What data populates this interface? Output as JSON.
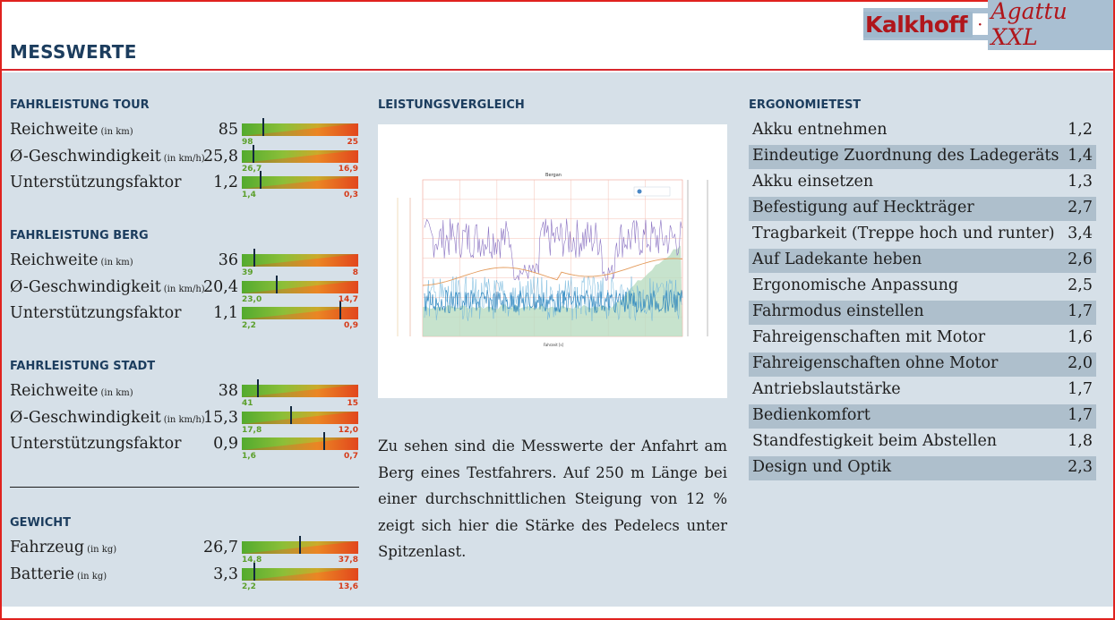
{
  "header": {
    "title": "MESSWERTE",
    "brand_make": "Kalkhoff",
    "brand_sep": "·",
    "brand_model": "Agattu XXL"
  },
  "left": {
    "sections": [
      {
        "title": "FAHRLEISTUNG TOUR",
        "metrics": [
          {
            "label": "Reichweite",
            "unit": "(in km)",
            "value": "85",
            "min": "98",
            "max": "25",
            "fraction": 0.18
          },
          {
            "label": "Ø-Geschwindigkeit",
            "unit": "(in km/h)",
            "value": "25,8",
            "min": "26,7",
            "max": "16,9",
            "fraction": 0.09
          },
          {
            "label": "Unterstützungsfaktor",
            "unit": "",
            "value": "1,2",
            "min": "1,4",
            "max": "0,3",
            "fraction": 0.16
          }
        ]
      },
      {
        "title": "FAHRLEISTUNG BERG",
        "metrics": [
          {
            "label": "Reichweite",
            "unit": "(in km)",
            "value": "36",
            "min": "39",
            "max": "8",
            "fraction": 0.1
          },
          {
            "label": "Ø-Geschwindigkeit",
            "unit": "(in km/h)",
            "value": "20,4",
            "min": "23,0",
            "max": "14,7",
            "fraction": 0.3
          },
          {
            "label": "Unterstützungsfaktor",
            "unit": "",
            "value": "1,1",
            "min": "2,2",
            "max": "0,9",
            "fraction": 0.85
          }
        ]
      },
      {
        "title": "FAHRLEISTUNG STADT",
        "metrics": [
          {
            "label": "Reichweite",
            "unit": "(in km)",
            "value": "38",
            "min": "41",
            "max": "15",
            "fraction": 0.13
          },
          {
            "label": "Ø-Geschwindigkeit",
            "unit": "(in km/h)",
            "value": "15,3",
            "min": "17,8",
            "max": "12,0",
            "fraction": 0.42
          },
          {
            "label": "Unterstützungsfaktor",
            "unit": "",
            "value": "0,9",
            "min": "1,6",
            "max": "0,7",
            "fraction": 0.71
          }
        ]
      },
      {
        "title": "GEWICHT",
        "metrics": [
          {
            "label": "Fahrzeug",
            "unit": "(in kg)",
            "value": "26,7",
            "min": "14,8",
            "max": "37,8",
            "fraction": 0.5
          },
          {
            "label": "Batterie",
            "unit": "(in kg)",
            "value": "3,3",
            "min": "2,2",
            "max": "13,6",
            "fraction": 0.1
          }
        ]
      }
    ]
  },
  "middle": {
    "title": "LEISTUNGSVERGLEICH",
    "chart_title": "Bergan",
    "x_label": "Fahrzeit [s]",
    "caption": "Zu sehen sind die Messwerte der Anfahrt am Berg eines Testfahrers. Auf 250 m Länge bei einer durchschnittlichen Steigung von 12 % zeigt sich hier die Stärke des Pedelecs unter Spitzenlast."
  },
  "right": {
    "title": "ERGONOMIETEST",
    "items": [
      {
        "label": "Akku entnehmen",
        "value": "1,2"
      },
      {
        "label": "Eindeutige Zuordnung des Ladegeräts",
        "value": "1,4"
      },
      {
        "label": "Akku einsetzen",
        "value": "1,3"
      },
      {
        "label": "Befestigung auf Heckträger",
        "value": "2,7"
      },
      {
        "label": "Tragbarkeit (Treppe hoch und runter)",
        "value": "3,4"
      },
      {
        "label": "Auf Ladekante heben",
        "value": "2,6"
      },
      {
        "label": "Ergonomische Anpassung",
        "value": "2,5"
      },
      {
        "label": "Fahrmodus einstellen",
        "value": "1,7"
      },
      {
        "label": "Fahreigenschaften mit Motor",
        "value": "1,6"
      },
      {
        "label": "Fahreigenschaften ohne Motor",
        "value": "2,0"
      },
      {
        "label": "Antriebslautstärke",
        "value": "1,7"
      },
      {
        "label": "Bedienkomfort",
        "value": "1,7"
      },
      {
        "label": "Standfestigkeit beim Abstellen",
        "value": "1,8"
      },
      {
        "label": "Design und Optik",
        "value": "2,3"
      }
    ]
  },
  "colors": {
    "accent_red": "#d8272c",
    "title_blue": "#1c3d5e",
    "panel_bg": "#d6e0e8",
    "row_shade": "#aebfcc",
    "bar_green": "#4fa82d",
    "bar_red": "#e2471e"
  }
}
